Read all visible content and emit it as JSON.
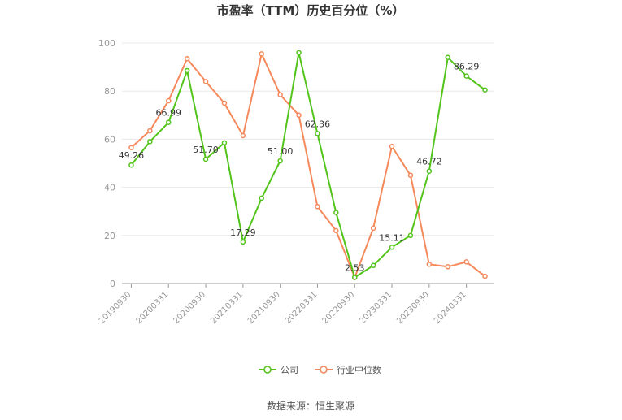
{
  "chart_data": {
    "type": "line",
    "title": "市盈率（TTM）历史百分位（%）",
    "source": "数据来源：恒生聚源",
    "ylim": [
      0,
      100
    ],
    "yticks": [
      0,
      20,
      40,
      60,
      80,
      100
    ],
    "grid": true,
    "legend_position": "bottom",
    "x": [
      "20190930",
      "20191231",
      "20200331",
      "20200630",
      "20200930",
      "20201231",
      "20210331",
      "20210630",
      "20210930",
      "20211231",
      "20220331",
      "20220630",
      "20220930",
      "20221231",
      "20230331",
      "20230630",
      "20230930",
      "20231231",
      "20240331",
      "20240630"
    ],
    "xtick_labels": [
      "20190930",
      "20200331",
      "20200930",
      "20210331",
      "20210930",
      "20220331",
      "20220930",
      "20230331",
      "20230930",
      "20240331"
    ],
    "series": [
      {
        "name": "公司",
        "color": "#52c41a",
        "values": [
          49.26,
          59,
          66.99,
          88.5,
          51.7,
          58.5,
          17.29,
          35.5,
          51.0,
          96,
          62.36,
          29.5,
          2.53,
          7.5,
          15.11,
          20,
          46.72,
          94,
          86.29,
          80.5
        ],
        "labels": {
          "0": "49.26",
          "2": "66.99",
          "4": "51.70",
          "6": "17.29",
          "8": "51.00",
          "10": "62.36",
          "12": "2.53",
          "14": "15.11",
          "16": "46.72",
          "18": "86.29"
        }
      },
      {
        "name": "行业中位数",
        "color": "#f5895b",
        "values": [
          56.5,
          63.5,
          76,
          93.5,
          84,
          75,
          61.5,
          95.5,
          78.5,
          70,
          32,
          22,
          2.5,
          23,
          57,
          45,
          8,
          7,
          9,
          3
        ]
      }
    ]
  }
}
